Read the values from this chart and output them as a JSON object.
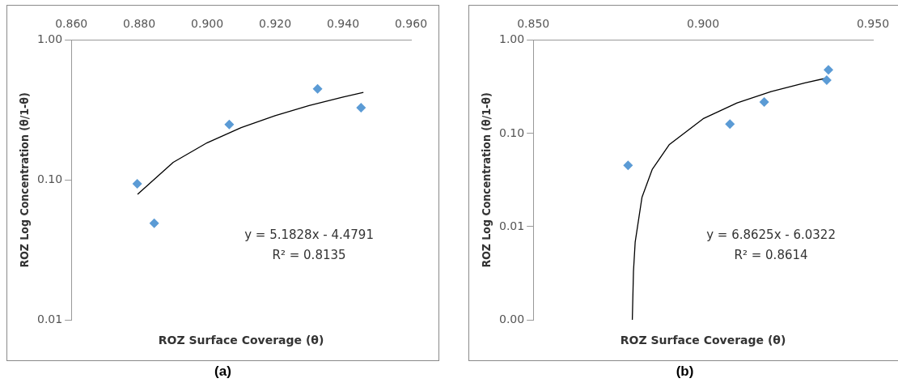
{
  "chart_data": [
    {
      "type": "scatter",
      "title": "(a)",
      "xlabel": "ROZ Surface Coverage (θ)",
      "ylabel": "ROZ Log Concentration (θ/1-θ)",
      "annotations": [
        "y = 5.1828x - 4.4791",
        "R² = 0.8135"
      ],
      "log": "y",
      "marker": "diamond",
      "xlim": [
        0.86,
        0.96
      ],
      "xticks": [
        {
          "value": 0.86,
          "label": "0.860"
        },
        {
          "value": 0.88,
          "label": "0.880"
        },
        {
          "value": 0.9,
          "label": "0.900"
        },
        {
          "value": 0.92,
          "label": "0.920"
        },
        {
          "value": 0.94,
          "label": "0.940"
        },
        {
          "value": 0.96,
          "label": "0.960"
        }
      ],
      "ylim": [
        0.01,
        1
      ],
      "yticks": [
        {
          "value": 0.01,
          "label": "0.01"
        },
        {
          "value": 0.1,
          "label": "0.10"
        },
        {
          "value": 1,
          "label": "1.00"
        }
      ],
      "series": [
        {
          "color": "#5b9bd5",
          "x": [
            0.8794,
            0.8844,
            0.9065,
            0.9325,
            0.9453
          ],
          "values": [
            0.094,
            0.049,
            0.25,
            0.45,
            0.33
          ]
        },
        {
          "type": "line",
          "marker": "none",
          "color": "#000000",
          "x": [
            0.8795,
            0.89,
            0.9,
            0.91,
            0.92,
            0.93,
            0.94,
            0.946
          ],
          "values": [
            0.079,
            0.134,
            0.185,
            0.237,
            0.289,
            0.341,
            0.393,
            0.424
          ]
        }
      ]
    },
    {
      "type": "scatter",
      "title": "(b)",
      "xlabel": "ROZ Surface Coverage (θ)",
      "ylabel": "ROZ Log Concentration (θ/1-θ)",
      "annotations": [
        "y = 6.8625x - 6.0322",
        "R² = 0.8614"
      ],
      "log": "y",
      "marker": "diamond",
      "xlim": [
        0.85,
        0.95
      ],
      "xticks": [
        {
          "value": 0.85,
          "label": "0.850"
        },
        {
          "value": 0.9,
          "label": "0.900"
        },
        {
          "value": 0.95,
          "label": "0.950"
        }
      ],
      "ylim": [
        0.001,
        1
      ],
      "yticks": [
        {
          "value": 0.001,
          "label": "0.00"
        },
        {
          "value": 0.01,
          "label": "0.01"
        },
        {
          "value": 0.1,
          "label": "0.10"
        },
        {
          "value": 1,
          "label": "1.00"
        }
      ],
      "series": [
        {
          "color": "#5b9bd5",
          "x": [
            0.8779,
            0.9079,
            0.918,
            0.9364,
            0.9369
          ],
          "values": [
            0.0455,
            0.126,
            0.218,
            0.374,
            0.483
          ]
        },
        {
          "type": "line",
          "marker": "none",
          "color": "#000000",
          "x": [
            0.87916,
            0.8795,
            0.88,
            0.882,
            0.885,
            0.89,
            0.9,
            0.91,
            0.92,
            0.93,
            0.9365
          ],
          "values": [
            0.001,
            0.0033,
            0.0068,
            0.0206,
            0.041,
            0.0756,
            0.144,
            0.213,
            0.281,
            0.35,
            0.3946
          ]
        }
      ]
    }
  ]
}
